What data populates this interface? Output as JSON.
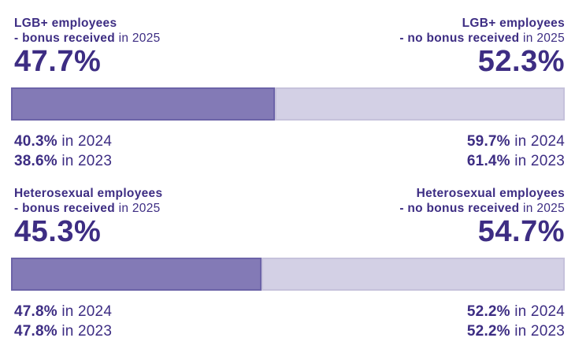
{
  "colors": {
    "text": "#3d2d83",
    "bar_filled": "#837ab6",
    "bar_filled_border": "#6c63a8",
    "bar_empty": "#d3d0e5",
    "bar_empty_border": "#c6c2db",
    "background": "#ffffff"
  },
  "chart_data": [
    {
      "type": "bar",
      "subtype": "stacked-100-percent",
      "group": "LGB+ employees",
      "categories": [
        "2025",
        "2024",
        "2023"
      ],
      "series": [
        {
          "name": "bonus received",
          "values": [
            47.7,
            40.3,
            38.6
          ]
        },
        {
          "name": "no bonus received",
          "values": [
            52.3,
            59.7,
            61.4
          ]
        }
      ],
      "bar_rendered_for": "2025",
      "legend_position": "none",
      "xlim": [
        0,
        100
      ]
    },
    {
      "type": "bar",
      "subtype": "stacked-100-percent",
      "group": "Heterosexual employees",
      "categories": [
        "2025",
        "2024",
        "2023"
      ],
      "series": [
        {
          "name": "bonus received",
          "values": [
            45.3,
            47.8,
            47.8
          ]
        },
        {
          "name": "no bonus received",
          "values": [
            54.7,
            52.2,
            52.2
          ]
        }
      ],
      "bar_rendered_for": "2025",
      "legend_position": "none",
      "xlim": [
        0,
        100
      ]
    }
  ],
  "sections": [
    {
      "left": {
        "line1": "LGB+ employees",
        "line2_strong": "- bonus received",
        "line2_light": " in 2025",
        "value": "47.7%"
      },
      "right": {
        "line1": "LGB+ employees",
        "line2_strong": "- no bonus received",
        "line2_light": " in 2025",
        "value": "52.3%"
      },
      "bar": {
        "bonus_pct": 47.7,
        "no_bonus_pct": 52.3
      },
      "history_left": [
        {
          "strong": "40.3%",
          "light": " in 2024"
        },
        {
          "strong": "38.6%",
          "light": " in 2023"
        }
      ],
      "history_right": [
        {
          "strong": "59.7%",
          "light": " in 2024"
        },
        {
          "strong": "61.4%",
          "light": " in 2023"
        }
      ]
    },
    {
      "left": {
        "line1": "Heterosexual employees",
        "line2_strong": "- bonus received",
        "line2_light": " in 2025",
        "value": "45.3%"
      },
      "right": {
        "line1": "Heterosexual employees",
        "line2_strong": "- no bonus received",
        "line2_light": " in 2025",
        "value": "54.7%"
      },
      "bar": {
        "bonus_pct": 45.3,
        "no_bonus_pct": 54.7
      },
      "history_left": [
        {
          "strong": "47.8%",
          "light": " in 2024"
        },
        {
          "strong": "47.8%",
          "light": " in 2023"
        }
      ],
      "history_right": [
        {
          "strong": "52.2%",
          "light": " in 2024"
        },
        {
          "strong": "52.2%",
          "light": " in 2023"
        }
      ]
    }
  ]
}
